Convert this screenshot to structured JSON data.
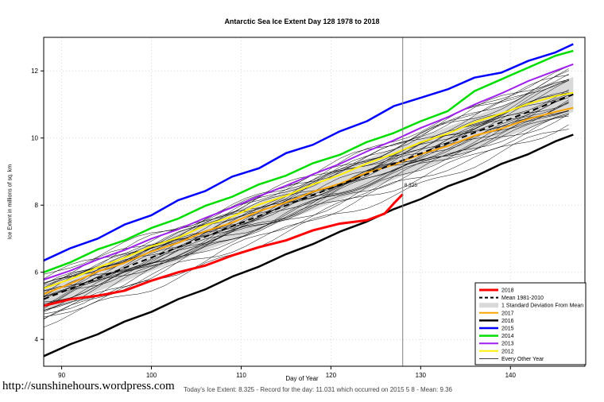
{
  "footer": {
    "url": "http://sunshinehours.wordpress.com",
    "note": "Today's Ice Extent: 8.325   - Record for the day: 11.031 which occurred on 2015 5 8   - Mean: 9.36"
  },
  "chart_data": {
    "type": "line",
    "title": "Antarctic Sea Ice Extent Day 128 1978 to 2018",
    "xlabel": "Day of Year",
    "ylabel": "Ice Extent in millions of sq. km",
    "xlim": [
      88,
      148.3
    ],
    "ylim": [
      3.2,
      13.0
    ],
    "xticks": [
      90,
      100,
      110,
      120,
      130,
      140
    ],
    "yticks": [
      4,
      6,
      8,
      10,
      12
    ],
    "grid": true,
    "vline_x": 128,
    "annotation": {
      "x": 128,
      "y": 8.55,
      "text": "8.325",
      "color": "#ff0000"
    },
    "band_color": "#d9d9d9",
    "mean_label": "Mean 1981-2010",
    "days": [
      88,
      91,
      94,
      97,
      100,
      103,
      106,
      109,
      112,
      115,
      118,
      121,
      124,
      127,
      130,
      133,
      136,
      139,
      142,
      145,
      147
    ],
    "sd": [
      0.38,
      0.39,
      0.39,
      0.4,
      0.41,
      0.41,
      0.42,
      0.43,
      0.43,
      0.44,
      0.45,
      0.45,
      0.46,
      0.47,
      0.47,
      0.48,
      0.49,
      0.49,
      0.5,
      0.51,
      0.52
    ],
    "series": [
      {
        "label": "2015",
        "color": "#0000ff",
        "width": 2.5,
        "values": [
          6.35,
          6.72,
          7.0,
          7.42,
          7.7,
          8.15,
          8.42,
          8.85,
          9.1,
          9.55,
          9.8,
          10.2,
          10.5,
          10.95,
          11.2,
          11.45,
          11.8,
          11.95,
          12.3,
          12.55,
          12.8
        ]
      },
      {
        "label": "2014",
        "color": "#00dd00",
        "width": 2.5,
        "values": [
          6.0,
          6.3,
          6.68,
          6.95,
          7.32,
          7.6,
          7.98,
          8.25,
          8.62,
          8.88,
          9.25,
          9.5,
          9.88,
          10.15,
          10.5,
          10.8,
          11.4,
          11.75,
          12.1,
          12.45,
          12.6
        ]
      },
      {
        "label": "2013",
        "color": "#a020f0",
        "width": 2,
        "values": [
          5.78,
          6.05,
          6.38,
          6.66,
          7.0,
          7.28,
          7.62,
          7.93,
          8.27,
          8.58,
          8.92,
          9.23,
          9.6,
          9.93,
          10.3,
          10.62,
          11.0,
          11.33,
          11.7,
          12.0,
          12.2
        ]
      },
      {
        "label": "2012",
        "color": "#ffee00",
        "width": 2,
        "values": [
          5.52,
          5.8,
          6.14,
          6.43,
          6.77,
          7.03,
          7.4,
          7.66,
          8.02,
          8.28,
          8.62,
          8.9,
          9.24,
          9.53,
          9.87,
          10.13,
          10.47,
          10.73,
          11.02,
          11.25,
          11.35
        ]
      },
      {
        "label": "2017",
        "color": "#ffa500",
        "width": 2,
        "values": [
          5.35,
          5.66,
          6.02,
          6.28,
          6.62,
          6.88,
          7.22,
          7.48,
          7.82,
          8.08,
          8.4,
          8.64,
          8.97,
          9.2,
          9.52,
          9.76,
          10.07,
          10.28,
          10.57,
          10.78,
          10.9
        ]
      },
      {
        "label": "2016",
        "color": "#000000",
        "width": 2.5,
        "values": [
          3.5,
          3.86,
          4.15,
          4.53,
          4.82,
          5.2,
          5.49,
          5.87,
          6.17,
          6.54,
          6.84,
          7.21,
          7.51,
          7.88,
          8.18,
          8.56,
          8.85,
          9.23,
          9.52,
          9.9,
          10.1
        ]
      },
      {
        "label": "Mean 1981-2010",
        "color": "#000000",
        "width": 2,
        "dash": "7,5",
        "values": [
          5.2,
          5.51,
          5.82,
          6.13,
          6.44,
          6.75,
          7.06,
          7.37,
          7.68,
          7.99,
          8.3,
          8.61,
          8.92,
          9.23,
          9.54,
          9.85,
          10.16,
          10.47,
          10.78,
          11.09,
          11.3
        ]
      },
      {
        "label": "2018",
        "color": "#ff0000",
        "width": 3,
        "x": [
          88,
          91,
          94,
          97,
          100,
          103,
          106,
          109,
          112,
          115,
          118,
          121,
          124,
          126,
          127,
          128
        ],
        "values": [
          5.0,
          5.2,
          5.3,
          5.45,
          5.75,
          6.0,
          6.2,
          6.5,
          6.75,
          6.95,
          7.25,
          7.45,
          7.55,
          7.75,
          8.05,
          8.325
        ]
      }
    ],
    "other_years": [
      [
        4.55,
        10.65
      ],
      [
        4.7,
        11.0
      ],
      [
        4.8,
        10.8
      ],
      [
        4.9,
        11.2
      ],
      [
        5.0,
        10.9
      ],
      [
        5.05,
        11.4
      ],
      [
        5.1,
        10.7
      ],
      [
        5.15,
        11.5
      ],
      [
        5.2,
        11.1
      ],
      [
        5.25,
        11.7
      ],
      [
        5.3,
        10.95
      ],
      [
        5.35,
        11.3
      ],
      [
        5.4,
        11.85
      ],
      [
        5.45,
        11.15
      ],
      [
        5.5,
        11.6
      ],
      [
        5.55,
        11.95
      ],
      [
        5.6,
        11.25
      ],
      [
        5.65,
        12.05
      ],
      [
        5.7,
        11.45
      ],
      [
        5.75,
        11.8
      ],
      [
        5.3,
        12.1
      ],
      [
        5.0,
        11.55
      ],
      [
        4.65,
        10.5
      ],
      [
        5.85,
        11.9
      ],
      [
        4.4,
        10.35
      ],
      [
        5.45,
        12.0
      ],
      [
        4.75,
        11.35
      ],
      [
        5.15,
        10.85
      ],
      [
        5.55,
        11.05
      ],
      [
        4.95,
        11.65
      ]
    ],
    "legend": [
      {
        "label": "2018",
        "color": "#ff0000",
        "lw": 3
      },
      {
        "label": "Mean 1981-2010",
        "color": "#000000",
        "lw": 2,
        "dash": "4,3"
      },
      {
        "label": "1 Standard Deviation From Mean",
        "color": "#d9d9d9",
        "band": true
      },
      {
        "label": "2017",
        "color": "#ffa500",
        "lw": 2
      },
      {
        "label": "2016",
        "color": "#000000",
        "lw": 2.5
      },
      {
        "label": "2015",
        "color": "#0000ff",
        "lw": 2.5
      },
      {
        "label": "2014",
        "color": "#00dd00",
        "lw": 2.5
      },
      {
        "label": "2013",
        "color": "#a020f0",
        "lw": 2
      },
      {
        "label": "2012",
        "color": "#ffee00",
        "lw": 2
      },
      {
        "label": "Every Other Year",
        "color": "#000000",
        "lw": 0.7
      }
    ]
  }
}
